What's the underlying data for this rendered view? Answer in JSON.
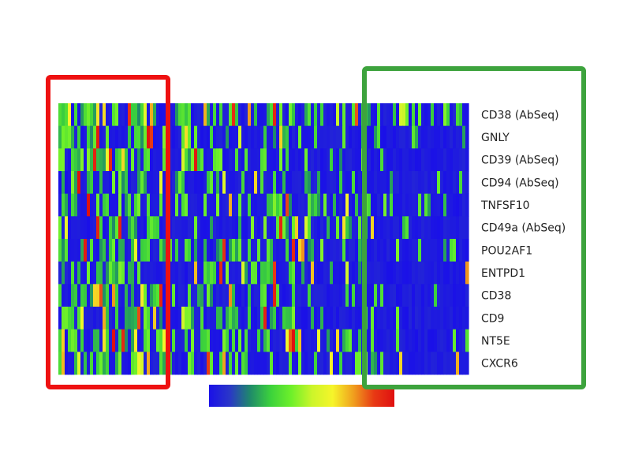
{
  "chart_data": {
    "type": "heatmap",
    "title": "",
    "rows": [
      "CD38 (AbSeq)",
      "GNLY",
      "CD39 (AbSeq)",
      "CD94 (AbSeq)",
      "TNFSF10",
      "CD49a (AbSeq)",
      "POU2AF1",
      "ENTPD1",
      "CD38",
      "CD9",
      "NT5E",
      "CXCR6"
    ],
    "n_columns": 130,
    "value_range": [
      0,
      1
    ],
    "colormap": [
      "#1a10e8",
      "#2a36c8",
      "#1f8a6a",
      "#3cd23c",
      "#6ef02a",
      "#ccf52a",
      "#f6f52a",
      "#f0a01e",
      "#e83a14",
      "#e01010"
    ],
    "colorbar": {
      "orientation": "horizontal",
      "position": "bottom"
    },
    "highlight_boxes": [
      {
        "color": "#ee1111",
        "covers": "leftmost columns"
      },
      {
        "color": "#3da33d",
        "covers": "rightmost columns and row labels"
      }
    ],
    "values_note": ""
  }
}
